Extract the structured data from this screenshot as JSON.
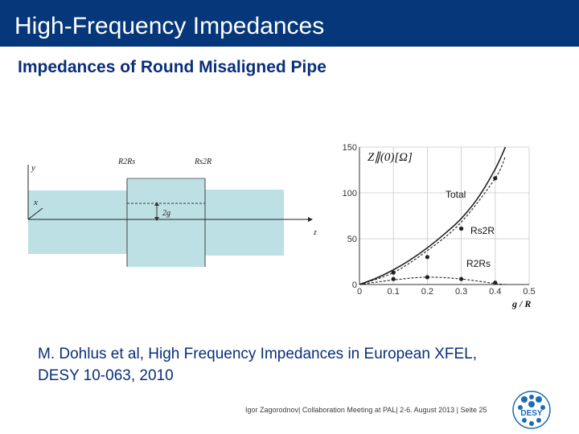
{
  "slide": {
    "title": "High-Frequency Impedances",
    "subtitle": "Impedances of Round Misaligned Pipe",
    "reference_line1": "M. Dohlus et al, High Frequency Impedances in European XFEL,",
    "reference_line2": "DESY 10-063, 2010",
    "footer": "Igor Zagorodnov| Collaboration Meeting at PAL| 2-6. August 2013 | Seite 25",
    "logo_text": "DESY"
  },
  "diagram": {
    "label_y": "y",
    "label_x": "x",
    "label_z": "z",
    "label_r2rs": "R2Rs",
    "label_rs2r": "Rs2R",
    "label_2g": "2g",
    "fill_color": "#bde0e5"
  },
  "chart_data": {
    "type": "line",
    "title": "",
    "annotation": "Z∥(0)[Ω]",
    "xlabel": "g / R",
    "ylabel": "",
    "xlim": [
      0,
      0.5
    ],
    "ylim": [
      0,
      150
    ],
    "xticks": [
      "0",
      "0.1",
      "0.2",
      "0.3",
      "0.4",
      "0.5"
    ],
    "yticks": [
      "0",
      "50",
      "100",
      "150"
    ],
    "grid": true,
    "series": [
      {
        "name": "Total",
        "style": "solid",
        "x": [
          0,
          0.05,
          0.1,
          0.15,
          0.2,
          0.25,
          0.3,
          0.35,
          0.4,
          0.43
        ],
        "y": [
          0,
          7,
          16,
          27,
          40,
          55,
          72,
          95,
          126,
          150
        ]
      },
      {
        "name": "Total",
        "style": "dashed",
        "x": [
          0,
          0.1,
          0.2,
          0.3,
          0.4,
          0.43
        ],
        "y": [
          0,
          13,
          37,
          68,
          116,
          140
        ],
        "markers": [
          [
            0.1,
            13
          ],
          [
            0.2,
            30
          ],
          [
            0.3,
            61
          ],
          [
            0.4,
            116
          ]
        ]
      },
      {
        "name": "Rs2R",
        "style": "markers",
        "x": [
          0.3
        ],
        "y": [
          61
        ]
      },
      {
        "name": "R2Rs",
        "style": "dashed",
        "x": [
          0,
          0.1,
          0.2,
          0.3,
          0.4,
          0.43
        ],
        "y": [
          0,
          5,
          8,
          6,
          1,
          0
        ],
        "markers": [
          [
            0.1,
            6
          ],
          [
            0.2,
            8
          ],
          [
            0.3,
            6
          ],
          [
            0.4,
            2
          ]
        ]
      }
    ],
    "colors": {
      "curves": "#222222",
      "grid": "#c8c8c8",
      "axis": "#333333"
    }
  },
  "theme": {
    "primary": "#06377a",
    "text_blue": "#0a2f78",
    "logo_blue": "#1c6db5"
  }
}
